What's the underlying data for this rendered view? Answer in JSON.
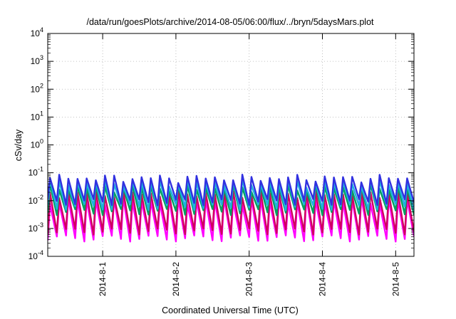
{
  "chart_data": {
    "type": "line",
    "title": "/data/run/goesPlots/archive/2014-08-05/06:00/flux/../bryn/5daysMars.plot",
    "xlabel": "Coordinated Universal Time (UTC)",
    "ylabel": "cSv/day",
    "yscale": "log",
    "ylim": [
      0.0001,
      10000
    ],
    "y_ticks": [
      {
        "value": 0.0001,
        "base": "10",
        "exp": "-4"
      },
      {
        "value": 0.001,
        "base": "10",
        "exp": "-3"
      },
      {
        "value": 0.01,
        "base": "10",
        "exp": "-2"
      },
      {
        "value": 0.1,
        "base": "10",
        "exp": "-1"
      },
      {
        "value": 1,
        "base": "10",
        "exp": "0"
      },
      {
        "value": 10,
        "base": "10",
        "exp": "1"
      },
      {
        "value": 100,
        "base": "10",
        "exp": "2"
      },
      {
        "value": 1000,
        "base": "10",
        "exp": "3"
      },
      {
        "value": 10000,
        "base": "10",
        "exp": "4"
      }
    ],
    "xlim": [
      "2014-07-31 06:00",
      "2014-08-05 06:00"
    ],
    "x_ticks": [
      "2014-8-1",
      "2014-8-2",
      "2014-8-3",
      "2014-8-4",
      "2014-8-5"
    ],
    "grid": true,
    "cycle_hours": 3,
    "series": [
      {
        "color": "#3030e0",
        "peak": 0.065,
        "trough": 0.009
      },
      {
        "color": "#20b0e0",
        "peak": 0.045,
        "trough": 0.006
      },
      {
        "color": "#00a060",
        "peak": 0.03,
        "trough": 0.004
      },
      {
        "color": "#d00060",
        "peak": 0.018,
        "trough": 0.0008
      },
      {
        "color": "#ff00ff",
        "peak": 0.01,
        "trough": 0.00045
      }
    ]
  }
}
